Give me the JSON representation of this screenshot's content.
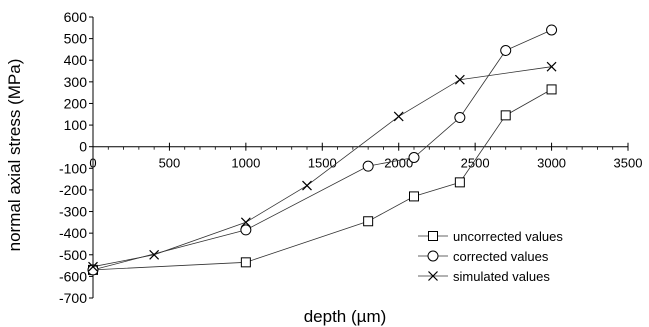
{
  "chart_data": {
    "type": "line",
    "xlabel": "depth (µm)",
    "ylabel": "normal axial stress (MPa)",
    "xlim": [
      0,
      3500
    ],
    "ylim": [
      -700,
      600
    ],
    "x_ticks": [
      "0",
      "500",
      "1000",
      "1500",
      "2000",
      "2500",
      "3000",
      "3500"
    ],
    "y_ticks": [
      "600",
      "500",
      "400",
      "300",
      "200",
      "100",
      "0",
      "-100",
      "-200",
      "-300",
      "-400",
      "-500",
      "-600",
      "-700"
    ],
    "grid": false,
    "legend_position": "bottom-right",
    "series": [
      {
        "name": "uncorrected values",
        "marker": "square",
        "x": [
          0,
          1000,
          1800,
          2100,
          2400,
          2700,
          3000
        ],
        "y": [
          -570,
          -535,
          -345,
          -230,
          -165,
          145,
          265
        ]
      },
      {
        "name": "corrected values",
        "marker": "circle",
        "x": [
          0,
          1000,
          1800,
          2100,
          2400,
          2700,
          3000
        ],
        "y": [
          -570,
          -385,
          -90,
          -50,
          135,
          445,
          540
        ]
      },
      {
        "name": "simulated values",
        "marker": "cross",
        "x": [
          0,
          400,
          1000,
          1400,
          2000,
          2400,
          3000
        ],
        "y": [
          -555,
          -500,
          -350,
          -180,
          140,
          310,
          370
        ]
      }
    ]
  }
}
